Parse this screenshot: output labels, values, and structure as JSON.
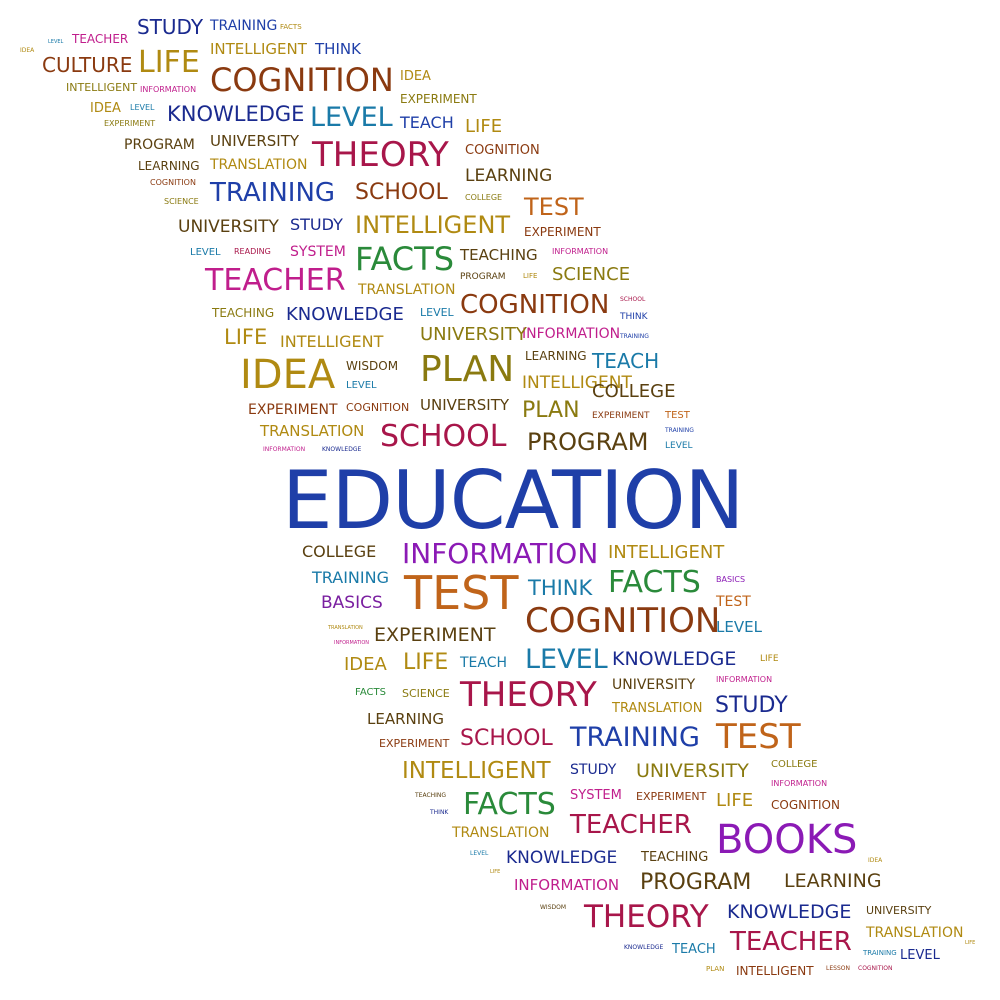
{
  "palette": {
    "blue": "#1f3fa8",
    "navy": "#1a2a8f",
    "purple": "#7a1fa0",
    "violet": "#8b1ab5",
    "magenta": "#c01e8c",
    "crimson": "#a8164a",
    "brown": "#8a3a10",
    "orange": "#c0641a",
    "gold": "#b08a12",
    "olive": "#8a7a10",
    "green": "#2a8a3a",
    "teal": "#1a7aa8",
    "darkbrown": "#5a4010"
  },
  "words": [
    {
      "text": "STUDY",
      "color": "navy"
    },
    {
      "text": "TRAINING",
      "color": "blue"
    },
    {
      "text": "FACTS",
      "color": "gold"
    },
    {
      "text": "TEACHER",
      "color": "magenta"
    },
    {
      "text": "IDEA",
      "color": "gold"
    },
    {
      "text": "LEVEL",
      "color": "teal"
    },
    {
      "text": "LIFE",
      "color": "gold"
    },
    {
      "text": "INTELLIGENT",
      "color": "gold"
    },
    {
      "text": "THINK",
      "color": "blue"
    },
    {
      "text": "CULTURE",
      "color": "brown"
    },
    {
      "text": "COGNITION",
      "color": "brown"
    },
    {
      "text": "IDEA",
      "color": "gold"
    },
    {
      "text": "INTELLIGENT",
      "color": "olive"
    },
    {
      "text": "INFORMATION",
      "color": "magenta"
    },
    {
      "text": "EXPERIMENT",
      "color": "olive"
    },
    {
      "text": "IDEA",
      "color": "gold"
    },
    {
      "text": "LEVEL",
      "color": "teal"
    },
    {
      "text": "KNOWLEDGE",
      "color": "navy"
    },
    {
      "text": "LEVEL",
      "color": "teal"
    },
    {
      "text": "TEACH",
      "color": "blue"
    },
    {
      "text": "EXPERIMENT",
      "color": "olive"
    },
    {
      "text": "LIFE",
      "color": "gold"
    },
    {
      "text": "PROGRAM",
      "color": "darkbrown"
    },
    {
      "text": "UNIVERSITY",
      "color": "darkbrown"
    },
    {
      "text": "THEORY",
      "color": "crimson"
    },
    {
      "text": "COGNITION",
      "color": "brown"
    },
    {
      "text": "LEARNING",
      "color": "darkbrown"
    },
    {
      "text": "TRANSLATION",
      "color": "gold"
    },
    {
      "text": "LEARNING",
      "color": "darkbrown"
    },
    {
      "text": "COGNITION",
      "color": "brown"
    },
    {
      "text": "TRAINING",
      "color": "blue"
    },
    {
      "text": "SCHOOL",
      "color": "brown"
    },
    {
      "text": "SCIENCE",
      "color": "olive"
    },
    {
      "text": "COLLEGE",
      "color": "olive"
    },
    {
      "text": "TEST",
      "color": "orange"
    },
    {
      "text": "UNIVERSITY",
      "color": "darkbrown"
    },
    {
      "text": "STUDY",
      "color": "navy"
    },
    {
      "text": "INTELLIGENT",
      "color": "gold"
    },
    {
      "text": "EXPERIMENT",
      "color": "brown"
    },
    {
      "text": "LEVEL",
      "color": "teal"
    },
    {
      "text": "READING",
      "color": "crimson"
    },
    {
      "text": "SYSTEM",
      "color": "magenta"
    },
    {
      "text": "FACTS",
      "color": "green"
    },
    {
      "text": "TEACHING",
      "color": "darkbrown"
    },
    {
      "text": "INFORMATION",
      "color": "magenta"
    },
    {
      "text": "TEACHER",
      "color": "magenta"
    },
    {
      "text": "PROGRAM",
      "color": "darkbrown"
    },
    {
      "text": "LIFE",
      "color": "gold"
    },
    {
      "text": "SCIENCE",
      "color": "olive"
    },
    {
      "text": "TRANSLATION",
      "color": "gold"
    },
    {
      "text": "COGNITION",
      "color": "brown"
    },
    {
      "text": "SCHOOL",
      "color": "crimson"
    },
    {
      "text": "TEACHING",
      "color": "olive"
    },
    {
      "text": "KNOWLEDGE",
      "color": "navy"
    },
    {
      "text": "LEVEL",
      "color": "teal"
    },
    {
      "text": "THINK",
      "color": "blue"
    },
    {
      "text": "LIFE",
      "color": "gold"
    },
    {
      "text": "INFORMATION",
      "color": "magenta"
    },
    {
      "text": "TRAINING",
      "color": "blue"
    },
    {
      "text": "INTELLIGENT",
      "color": "gold"
    },
    {
      "text": "UNIVERSITY",
      "color": "olive"
    },
    {
      "text": "LEARNING",
      "color": "darkbrown"
    },
    {
      "text": "TEACH",
      "color": "teal"
    },
    {
      "text": "IDEA",
      "color": "gold"
    },
    {
      "text": "WISDOM",
      "color": "darkbrown"
    },
    {
      "text": "PLAN",
      "color": "olive"
    },
    {
      "text": "INTELLIGENT",
      "color": "gold"
    },
    {
      "text": "LEVEL",
      "color": "teal"
    },
    {
      "text": "COLLEGE",
      "color": "darkbrown"
    },
    {
      "text": "EXPERIMENT",
      "color": "brown"
    },
    {
      "text": "COGNITION",
      "color": "brown"
    },
    {
      "text": "UNIVERSITY",
      "color": "darkbrown"
    },
    {
      "text": "PLAN",
      "color": "olive"
    },
    {
      "text": "EXPERIMENT",
      "color": "brown"
    },
    {
      "text": "TEST",
      "color": "orange"
    },
    {
      "text": "TRANSLATION",
      "color": "gold"
    },
    {
      "text": "SCHOOL",
      "color": "crimson"
    },
    {
      "text": "PROGRAM",
      "color": "darkbrown"
    },
    {
      "text": "TRAINING",
      "color": "blue"
    },
    {
      "text": "INFORMATION",
      "color": "magenta"
    },
    {
      "text": "KNOWLEDGE",
      "color": "navy"
    },
    {
      "text": "LEVEL",
      "color": "teal"
    },
    {
      "text": "EDUCATION",
      "color": "blue"
    },
    {
      "text": "COLLEGE",
      "color": "darkbrown"
    },
    {
      "text": "INFORMATION",
      "color": "violet"
    },
    {
      "text": "INTELLIGENT",
      "color": "gold"
    },
    {
      "text": "TRAINING",
      "color": "teal"
    },
    {
      "text": "TEST",
      "color": "orange"
    },
    {
      "text": "THINK",
      "color": "teal"
    },
    {
      "text": "FACTS",
      "color": "green"
    },
    {
      "text": "BASICS",
      "color": "violet"
    },
    {
      "text": "BASICS",
      "color": "purple"
    },
    {
      "text": "TEST",
      "color": "orange"
    },
    {
      "text": "TRANSLATION",
      "color": "gold"
    },
    {
      "text": "EXPERIMENT",
      "color": "darkbrown"
    },
    {
      "text": "COGNITION",
      "color": "brown"
    },
    {
      "text": "INFORMATION",
      "color": "magenta"
    },
    {
      "text": "LEVEL",
      "color": "teal"
    },
    {
      "text": "IDEA",
      "color": "gold"
    },
    {
      "text": "LIFE",
      "color": "gold"
    },
    {
      "text": "TEACH",
      "color": "teal"
    },
    {
      "text": "LEVEL",
      "color": "teal"
    },
    {
      "text": "KNOWLEDGE",
      "color": "navy"
    },
    {
      "text": "LIFE",
      "color": "gold"
    },
    {
      "text": "INFORMATION",
      "color": "magenta"
    },
    {
      "text": "FACTS",
      "color": "green"
    },
    {
      "text": "SCIENCE",
      "color": "olive"
    },
    {
      "text": "THEORY",
      "color": "crimson"
    },
    {
      "text": "UNIVERSITY",
      "color": "darkbrown"
    },
    {
      "text": "STUDY",
      "color": "navy"
    },
    {
      "text": "LEARNING",
      "color": "darkbrown"
    },
    {
      "text": "TRANSLATION",
      "color": "gold"
    },
    {
      "text": "EXPERIMENT",
      "color": "brown"
    },
    {
      "text": "SCHOOL",
      "color": "crimson"
    },
    {
      "text": "TRAINING",
      "color": "blue"
    },
    {
      "text": "TEST",
      "color": "orange"
    },
    {
      "text": "INTELLIGENT",
      "color": "gold"
    },
    {
      "text": "STUDY",
      "color": "navy"
    },
    {
      "text": "UNIVERSITY",
      "color": "olive"
    },
    {
      "text": "COLLEGE",
      "color": "olive"
    },
    {
      "text": "INFORMATION",
      "color": "magenta"
    },
    {
      "text": "TEACHING",
      "color": "darkbrown"
    },
    {
      "text": "FACTS",
      "color": "green"
    },
    {
      "text": "SYSTEM",
      "color": "magenta"
    },
    {
      "text": "EXPERIMENT",
      "color": "brown"
    },
    {
      "text": "LIFE",
      "color": "gold"
    },
    {
      "text": "COGNITION",
      "color": "brown"
    },
    {
      "text": "THINK",
      "color": "navy"
    },
    {
      "text": "TRANSLATION",
      "color": "gold"
    },
    {
      "text": "TEACHER",
      "color": "crimson"
    },
    {
      "text": "LEVEL",
      "color": "teal"
    },
    {
      "text": "KNOWLEDGE",
      "color": "navy"
    },
    {
      "text": "TEACHING",
      "color": "darkbrown"
    },
    {
      "text": "BOOKS",
      "color": "violet"
    },
    {
      "text": "IDEA",
      "color": "gold"
    },
    {
      "text": "LIFE",
      "color": "gold"
    },
    {
      "text": "INFORMATION",
      "color": "magenta"
    },
    {
      "text": "PROGRAM",
      "color": "darkbrown"
    },
    {
      "text": "LEARNING",
      "color": "darkbrown"
    },
    {
      "text": "WISDOM",
      "color": "darkbrown"
    },
    {
      "text": "THEORY",
      "color": "crimson"
    },
    {
      "text": "KNOWLEDGE",
      "color": "navy"
    },
    {
      "text": "UNIVERSITY",
      "color": "darkbrown"
    },
    {
      "text": "TRANSLATION",
      "color": "gold"
    },
    {
      "text": "LIFE",
      "color": "gold"
    },
    {
      "text": "KNOWLEDGE",
      "color": "navy"
    },
    {
      "text": "TEACH",
      "color": "teal"
    },
    {
      "text": "TEACHER",
      "color": "crimson"
    },
    {
      "text": "TRAINING",
      "color": "teal"
    },
    {
      "text": "LEVEL",
      "color": "navy"
    },
    {
      "text": "PLAN",
      "color": "gold"
    },
    {
      "text": "INTELLIGENT",
      "color": "brown"
    },
    {
      "text": "LESSON",
      "color": "brown"
    },
    {
      "text": "COGNITION",
      "color": "crimson"
    }
  ]
}
